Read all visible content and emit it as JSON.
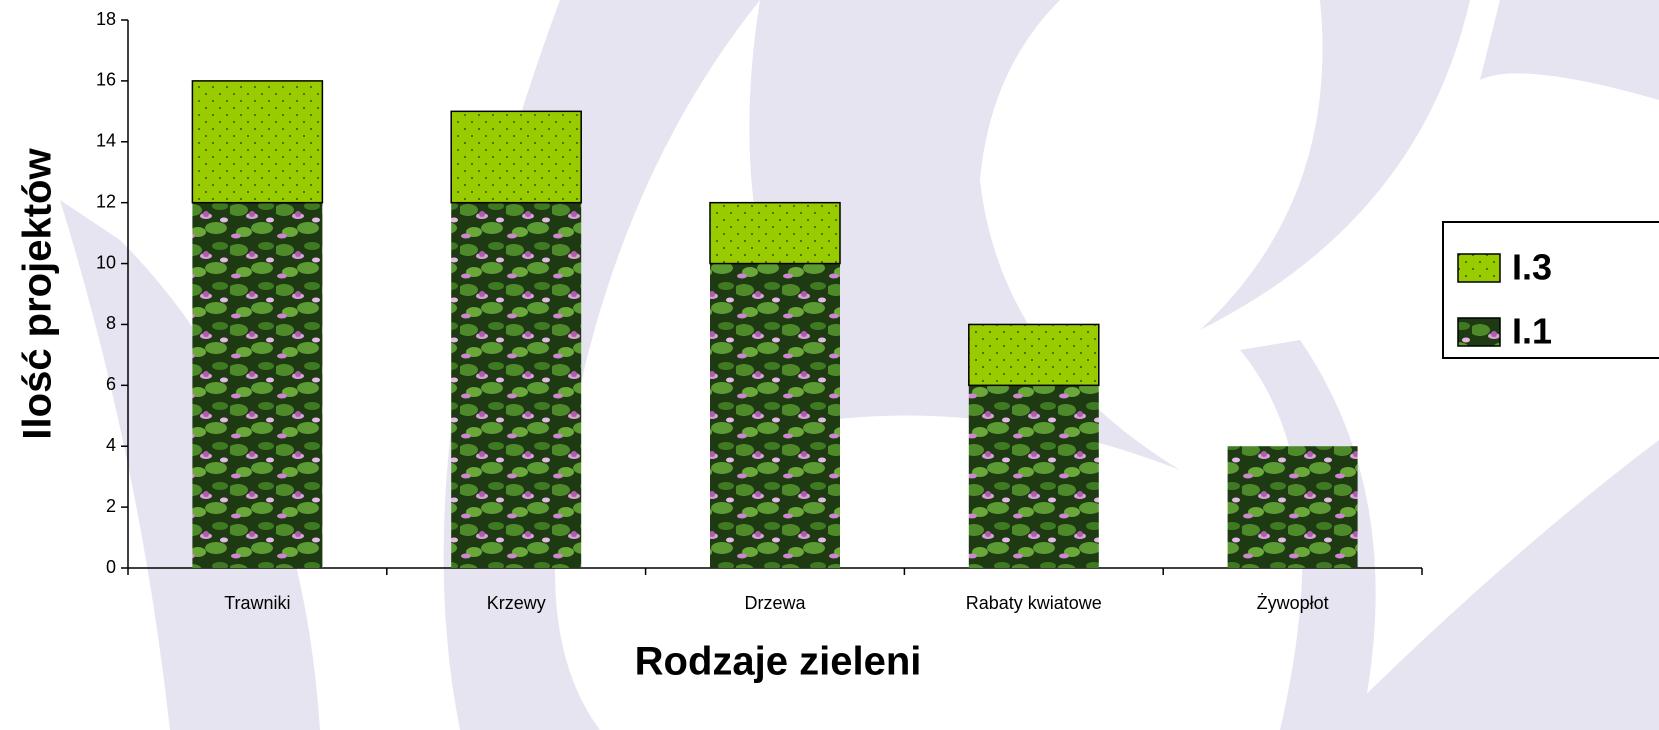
{
  "chart_data": {
    "type": "stacked_bar",
    "categories": [
      "Trawniki",
      "Krzewy",
      "Drzewa",
      "Rabaty kwiatowe",
      "Żywopłot"
    ],
    "series": [
      {
        "name": "I.1",
        "color": "#2e5a1c",
        "values": [
          12,
          12,
          10,
          6,
          4
        ]
      },
      {
        "name": "I.3",
        "color": "#99cc00",
        "values": [
          4,
          3,
          2,
          2,
          0
        ]
      }
    ],
    "ylim": [
      0,
      18
    ],
    "yticks": [
      0,
      2,
      4,
      6,
      8,
      10,
      12,
      14,
      16,
      18
    ],
    "xlabel": "Rodzaje zieleni",
    "ylabel": "Ilość projektów",
    "legend": "right"
  }
}
